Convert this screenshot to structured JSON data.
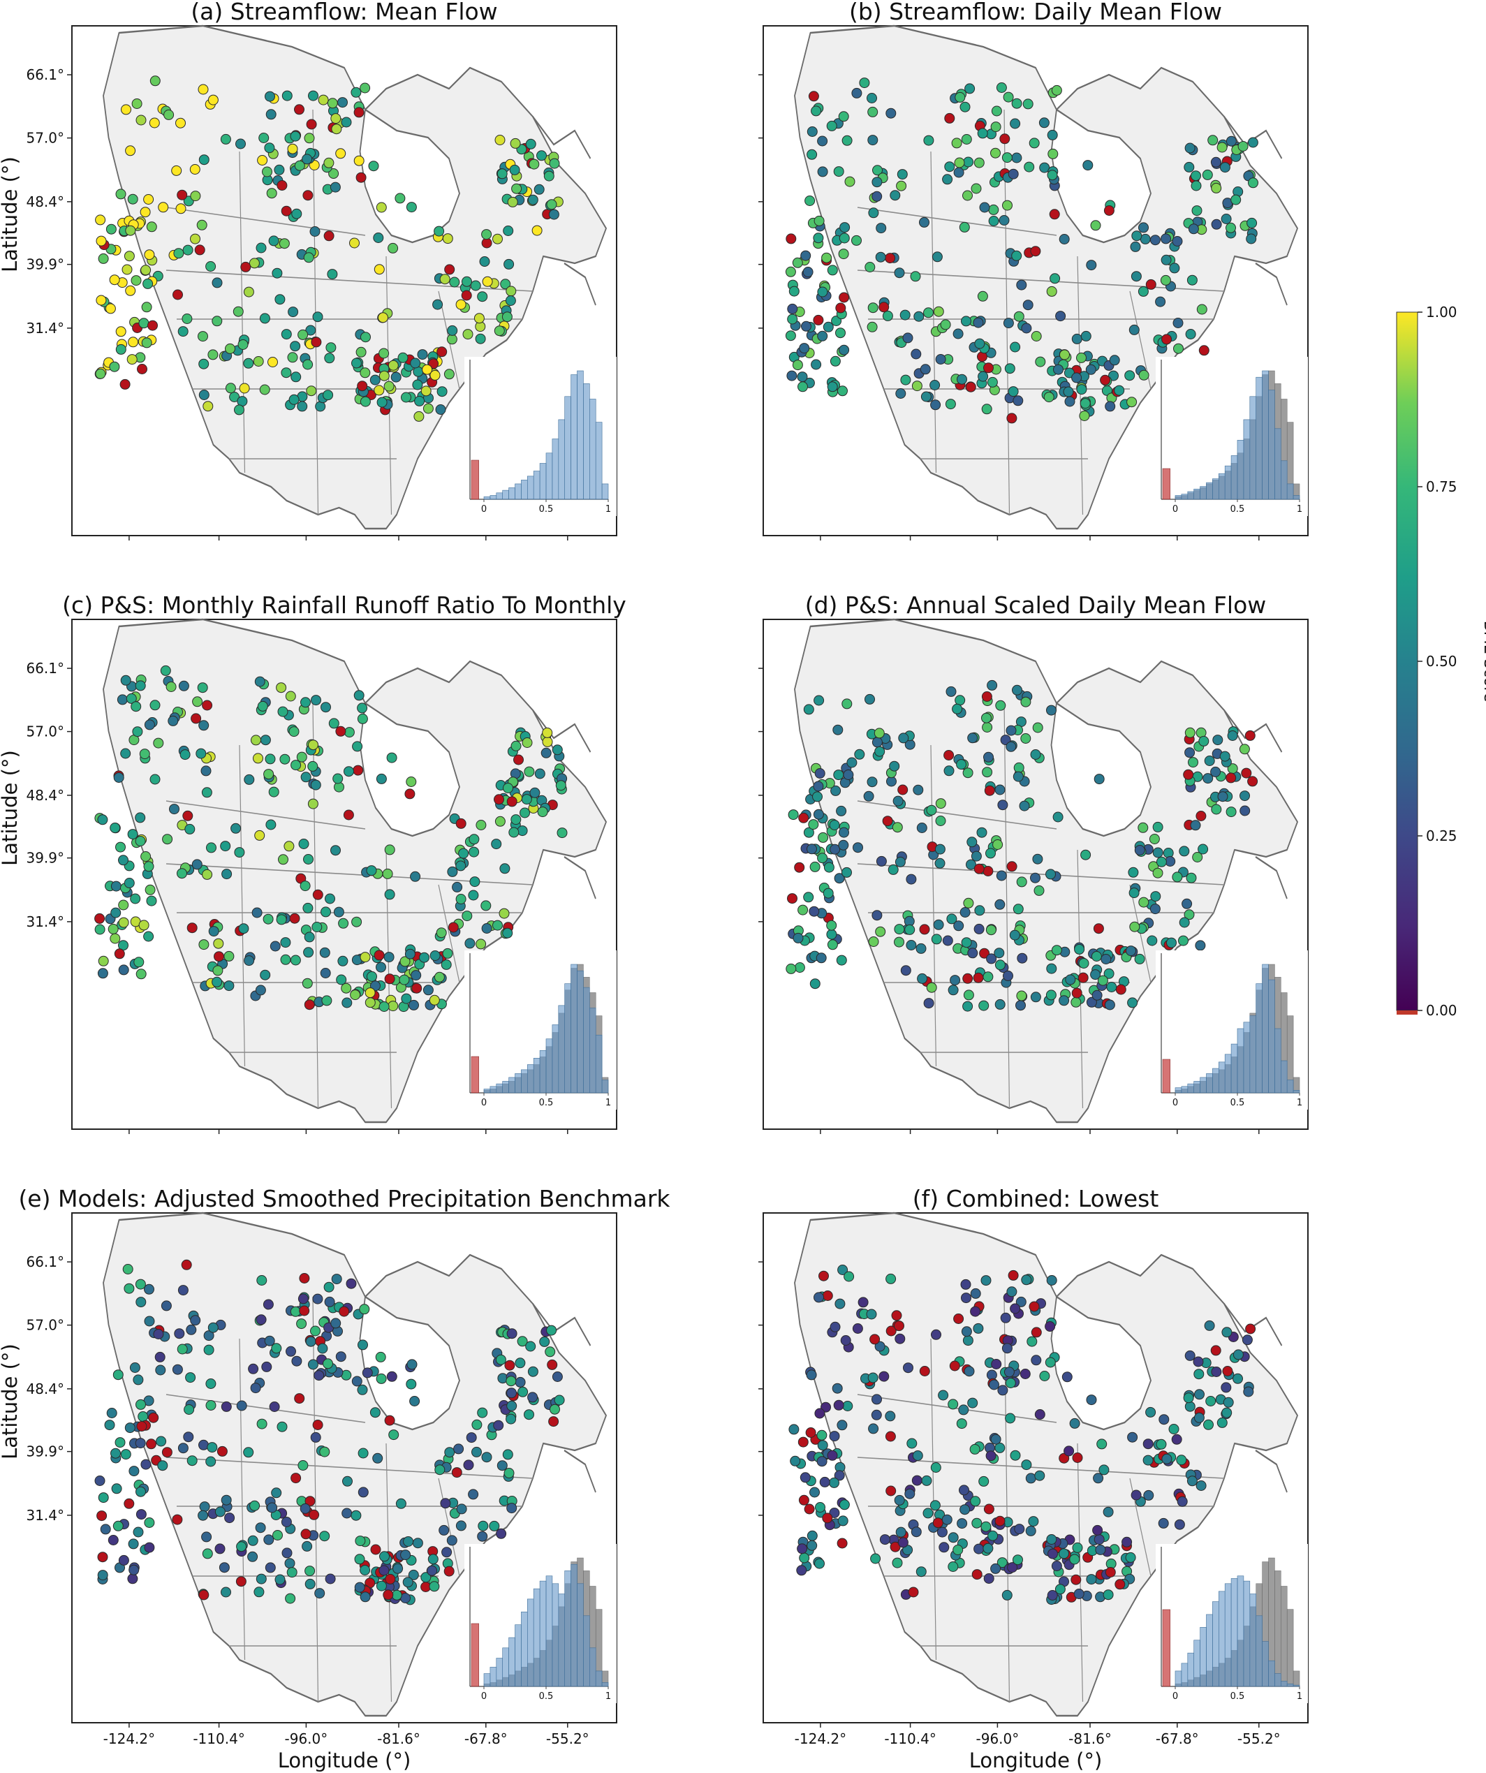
{
  "figure": {
    "colorbar": {
      "label": "BME Score",
      "ticks": [
        "1.00",
        "0.75",
        "0.50",
        "0.25",
        "0.00"
      ],
      "tick_values": [
        1.0,
        0.75,
        0.5,
        0.25,
        0.0
      ],
      "range": [
        0,
        1
      ],
      "colormap": "viridis",
      "below_range_color": "#c0392b"
    },
    "lat_ticks": [
      "66.1°",
      "57.0°",
      "48.4°",
      "39.9°",
      "31.4°"
    ],
    "lon_ticks": [
      "-124.2°",
      "-110.4°",
      "-96.0°",
      "-81.6°",
      "-67.8°",
      "-55.2°"
    ],
    "ylabel": "Latitude (°)",
    "xlabel": "Longitude (°)",
    "hist_ticks": [
      "0",
      "0.5",
      "1"
    ]
  },
  "chart_data": [
    {
      "type": "scatter",
      "title": "(a) Streamflow: Mean Flow",
      "color_by": "BME Score",
      "inset_hist": {
        "type": "bar",
        "bins": [
          0,
          0.05,
          0.1,
          0.15,
          0.2,
          0.25,
          0.3,
          0.35,
          0.4,
          0.45,
          0.5,
          0.55,
          0.6,
          0.65,
          0.7,
          0.75,
          0.8,
          0.85,
          0.9,
          0.95
        ],
        "below_zero_fraction": 0.28,
        "panel_counts": [
          0.02,
          0.03,
          0.05,
          0.07,
          0.09,
          0.12,
          0.15,
          0.18,
          0.22,
          0.28,
          0.36,
          0.47,
          0.62,
          0.8,
          0.97,
          1.0,
          0.9,
          0.78,
          0.6,
          0.12
        ],
        "reference_counts": null
      }
    },
    {
      "type": "scatter",
      "title": "(b) Streamflow: Daily Mean Flow",
      "color_by": "BME Score",
      "inset_hist": {
        "type": "bar",
        "bins": [
          0,
          0.05,
          0.1,
          0.15,
          0.2,
          0.25,
          0.3,
          0.35,
          0.4,
          0.45,
          0.5,
          0.55,
          0.6,
          0.65,
          0.7,
          0.75,
          0.8,
          0.85,
          0.9,
          0.95
        ],
        "below_zero_fraction": 0.22,
        "panel_counts": [
          0.03,
          0.04,
          0.06,
          0.08,
          0.1,
          0.13,
          0.16,
          0.2,
          0.26,
          0.34,
          0.46,
          0.62,
          0.8,
          0.95,
          1.0,
          0.85,
          0.55,
          0.3,
          0.12,
          0.03
        ],
        "reference_counts": [
          0.02,
          0.03,
          0.05,
          0.07,
          0.09,
          0.12,
          0.15,
          0.18,
          0.22,
          0.28,
          0.36,
          0.47,
          0.62,
          0.8,
          0.97,
          1.0,
          0.9,
          0.78,
          0.6,
          0.12
        ]
      }
    },
    {
      "type": "scatter",
      "title": "(c) P&S: Monthly Rainfall Runoff Ratio To Monthly",
      "color_by": "BME Score",
      "inset_hist": {
        "type": "bar",
        "bins": [
          0,
          0.05,
          0.1,
          0.15,
          0.2,
          0.25,
          0.3,
          0.35,
          0.4,
          0.45,
          0.5,
          0.55,
          0.6,
          0.65,
          0.7,
          0.75,
          0.8,
          0.85,
          0.9,
          0.95
        ],
        "below_zero_fraction": 0.26,
        "panel_counts": [
          0.03,
          0.05,
          0.07,
          0.09,
          0.12,
          0.15,
          0.18,
          0.22,
          0.27,
          0.33,
          0.42,
          0.53,
          0.68,
          0.85,
          1.0,
          0.95,
          0.82,
          0.66,
          0.45,
          0.1
        ],
        "reference_counts": [
          0.02,
          0.03,
          0.05,
          0.07,
          0.09,
          0.12,
          0.15,
          0.18,
          0.22,
          0.28,
          0.36,
          0.47,
          0.62,
          0.8,
          0.97,
          1.0,
          0.9,
          0.78,
          0.6,
          0.12
        ]
      }
    },
    {
      "type": "scatter",
      "title": "(d) P&S: Annual Scaled Daily Mean Flow",
      "color_by": "BME Score",
      "inset_hist": {
        "type": "bar",
        "bins": [
          0,
          0.05,
          0.1,
          0.15,
          0.2,
          0.25,
          0.3,
          0.35,
          0.4,
          0.45,
          0.5,
          0.55,
          0.6,
          0.65,
          0.7,
          0.75,
          0.8,
          0.85,
          0.9,
          0.95
        ],
        "below_zero_fraction": 0.24,
        "panel_counts": [
          0.04,
          0.05,
          0.07,
          0.09,
          0.12,
          0.15,
          0.19,
          0.24,
          0.3,
          0.38,
          0.5,
          0.55,
          0.6,
          0.85,
          1.0,
          0.88,
          0.5,
          0.25,
          0.1,
          0.02
        ],
        "reference_counts": [
          0.02,
          0.03,
          0.05,
          0.07,
          0.09,
          0.12,
          0.15,
          0.18,
          0.22,
          0.28,
          0.36,
          0.47,
          0.62,
          0.8,
          0.97,
          1.0,
          0.9,
          0.78,
          0.6,
          0.12
        ]
      }
    },
    {
      "type": "scatter",
      "title": "(e) Models: Adjusted Smoothed Precipitation Benchmark",
      "color_by": "BME Score",
      "inset_hist": {
        "type": "bar",
        "bins": [
          0,
          0.05,
          0.1,
          0.15,
          0.2,
          0.25,
          0.3,
          0.35,
          0.4,
          0.45,
          0.5,
          0.55,
          0.6,
          0.65,
          0.7,
          0.75,
          0.8,
          0.85,
          0.9,
          0.95
        ],
        "below_zero_fraction": 0.45,
        "panel_counts": [
          0.1,
          0.15,
          0.22,
          0.3,
          0.38,
          0.48,
          0.58,
          0.68,
          0.76,
          0.82,
          0.86,
          0.8,
          0.72,
          0.9,
          0.95,
          0.8,
          0.55,
          0.3,
          0.12,
          0.03
        ],
        "reference_counts": [
          0.02,
          0.03,
          0.05,
          0.07,
          0.09,
          0.12,
          0.15,
          0.18,
          0.22,
          0.28,
          0.36,
          0.47,
          0.62,
          0.8,
          0.97,
          1.0,
          0.9,
          0.78,
          0.6,
          0.12
        ]
      }
    },
    {
      "type": "scatter",
      "title": "(f) Combined: Lowest",
      "color_by": "BME Score",
      "inset_hist": {
        "type": "bar",
        "bins": [
          0,
          0.05,
          0.1,
          0.15,
          0.2,
          0.25,
          0.3,
          0.35,
          0.4,
          0.45,
          0.5,
          0.55,
          0.6,
          0.65,
          0.7,
          0.75,
          0.8,
          0.85,
          0.9,
          0.95
        ],
        "below_zero_fraction": 0.55,
        "panel_counts": [
          0.12,
          0.18,
          0.26,
          0.36,
          0.46,
          0.56,
          0.66,
          0.74,
          0.8,
          0.84,
          0.86,
          0.82,
          0.72,
          0.55,
          0.35,
          0.2,
          0.1,
          0.04,
          0.02,
          0.01
        ],
        "reference_counts": [
          0.02,
          0.03,
          0.05,
          0.07,
          0.09,
          0.12,
          0.15,
          0.18,
          0.22,
          0.28,
          0.36,
          0.47,
          0.62,
          0.8,
          0.97,
          1.0,
          0.9,
          0.78,
          0.6,
          0.12
        ]
      }
    }
  ]
}
